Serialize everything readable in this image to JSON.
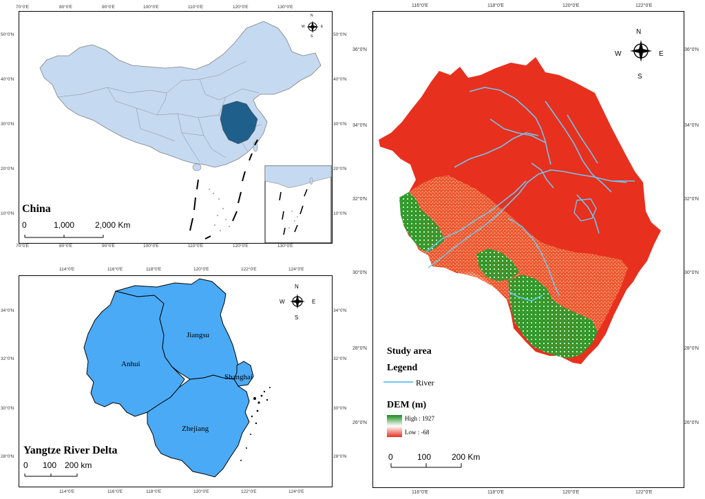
{
  "china_panel": {
    "title": "China",
    "scale_labels": [
      "0",
      "1,000",
      "2,000 Km"
    ],
    "top_lon_labels": [
      "70°0'E",
      "80°0'E",
      "90°0'E",
      "100°0'E",
      "110°0'E",
      "120°0'E",
      "130°0'E"
    ],
    "bottom_lon_labels": [
      "70°0'E",
      "80°0'E",
      "90°0'E",
      "100°0'E",
      "110°0'E",
      "120°0'E",
      "130°0'E"
    ],
    "left_lat_labels": [
      "50°0'N",
      "40°0'N",
      "30°0'N",
      "20°0'N",
      "10°0'N"
    ],
    "right_lat_labels": [
      "50°0'N",
      "40°0'N",
      "30°0'N",
      "20°0'N",
      "10°0'N"
    ],
    "compass": {
      "n": "N",
      "s": "S",
      "e": "E",
      "w": "W"
    },
    "colors": {
      "country": "#c5d9f1",
      "highlight": "#1f5f8b",
      "border": "#7f7f7f"
    }
  },
  "yrd_panel": {
    "title": "Yangtze River Delta",
    "scale_labels": [
      "0",
      "100",
      "200 km"
    ],
    "provinces": [
      "Anhui",
      "Jiangsu",
      "Shanghai",
      "Zhejiang"
    ],
    "top_lon_labels": [
      "114°0'E",
      "116°0'E",
      "118°0'E",
      "120°0'E",
      "122°0'E",
      "124°0'E"
    ],
    "bottom_lon_labels": [
      "114°0'E",
      "116°0'E",
      "118°0'E",
      "120°0'E",
      "122°0'E",
      "124°0'E"
    ],
    "left_lat_labels": [
      "34°0'N",
      "32°0'N",
      "30°0'N",
      "28°0'N"
    ],
    "right_lat_labels": [
      "34°0'N",
      "32°0'N",
      "30°0'N",
      "28°0'N"
    ],
    "compass": {
      "n": "N",
      "s": "S",
      "e": "E",
      "w": "W"
    },
    "colors": {
      "fill": "#4aaaf5",
      "border": "#000000"
    }
  },
  "study_panel": {
    "top_lon_labels": [
      "116°0'E",
      "118°0'E",
      "120°0'E",
      "122°0'E"
    ],
    "bottom_lon_labels": [
      "116°0'E",
      "118°0'E",
      "120°0'E",
      "122°0'E"
    ],
    "left_lat_labels": [
      "36°0'N",
      "34°0'N",
      "32°0'N",
      "30°0'N",
      "28°0'N",
      "26°0'N"
    ],
    "right_lat_labels": [
      "36°0'N",
      "34°0'N",
      "32°0'N",
      "30°0'N",
      "28°0'N",
      "26°0'N"
    ],
    "compass": {
      "n": "N",
      "s": "S",
      "e": "E",
      "w": "W"
    },
    "legend": {
      "title": "Study area",
      "legend_heading": "Legend",
      "river_label": "River",
      "dem_title": "DEM (m)",
      "high_label": "High : 1927",
      "low_label": "Low : -68"
    },
    "scale_labels": [
      "0",
      "100",
      "200 Km"
    ],
    "colors": {
      "river": "#6ec6f0",
      "dem_high": "#1a8a1a",
      "dem_low": "#e83020",
      "dem_mid": "#ffffff"
    }
  }
}
